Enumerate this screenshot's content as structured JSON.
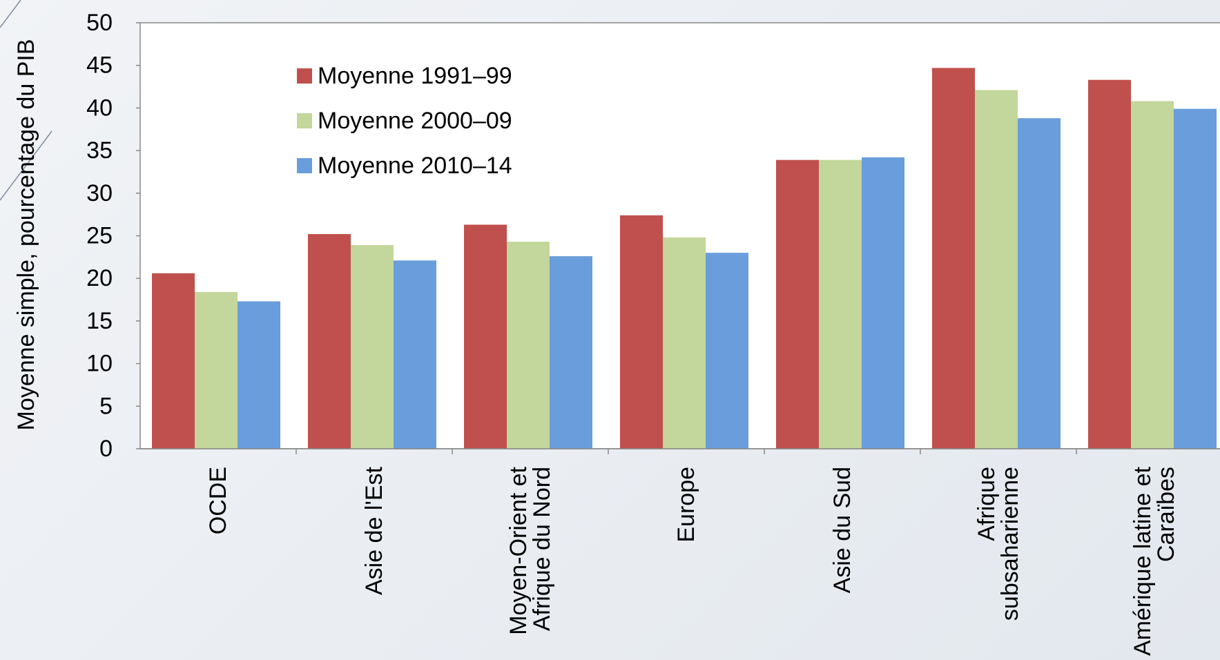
{
  "chart_data": {
    "type": "bar",
    "y_label": "Moyenne simple, pourcentage du PIB",
    "categories": [
      "OCDE",
      "Asie de l'Est",
      "Moyen-Orient et\nAfrique du Nord",
      "Europe",
      "Asie du Sud",
      "Afrique\nsubsaharienne",
      "Amérique latine et\nCaraïbes"
    ],
    "series": [
      {
        "name": "Moyenne 1991–99",
        "color": "#c0504d",
        "values": [
          20.6,
          25.2,
          26.3,
          27.4,
          33.9,
          44.7,
          43.3
        ]
      },
      {
        "name": "Moyenne 2000–09",
        "color": "#c3d69b",
        "values": [
          18.4,
          23.9,
          24.3,
          24.8,
          33.9,
          42.1,
          40.8
        ]
      },
      {
        "name": "Moyenne 2010–14",
        "color": "#6a9ddb",
        "values": [
          17.3,
          22.1,
          22.6,
          23.0,
          34.2,
          38.8,
          39.9
        ]
      }
    ],
    "ylim": [
      0,
      50
    ],
    "yticks": [
      0,
      5,
      10,
      15,
      20,
      25,
      30,
      35,
      40,
      45,
      50
    ],
    "legend": "upper-left"
  }
}
